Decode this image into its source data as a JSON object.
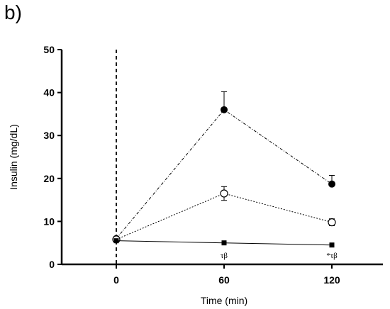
{
  "panel_label": "b)",
  "chart_data": {
    "type": "line",
    "title": "",
    "xlabel": "Time (min)",
    "ylabel": "Insulin (mg/dL)",
    "categories": [
      "0",
      "60",
      "120"
    ],
    "ylim": [
      0,
      50
    ],
    "yticks": [
      "0",
      "10",
      "20",
      "30",
      "40",
      "50"
    ],
    "grid": false,
    "reference_line": {
      "x": "0",
      "style": "dashed"
    },
    "series": [
      {
        "marker": "filled-circle",
        "line": "dash-dot",
        "values": [
          6,
          36,
          18.7
        ],
        "errors": [
          0,
          4.2,
          2.0
        ]
      },
      {
        "marker": "open-circle",
        "line": "dotted",
        "values": [
          5.8,
          16.5,
          9.8
        ],
        "errors": [
          0,
          1.6,
          0.8
        ]
      },
      {
        "marker": "filled-square",
        "line": "solid",
        "values": [
          5.5,
          5,
          4.5
        ],
        "errors": [
          0,
          0,
          0
        ]
      }
    ],
    "annotations": [
      {
        "x": "60",
        "text": "τβ"
      },
      {
        "x": "120",
        "text": "*τβ"
      }
    ]
  }
}
